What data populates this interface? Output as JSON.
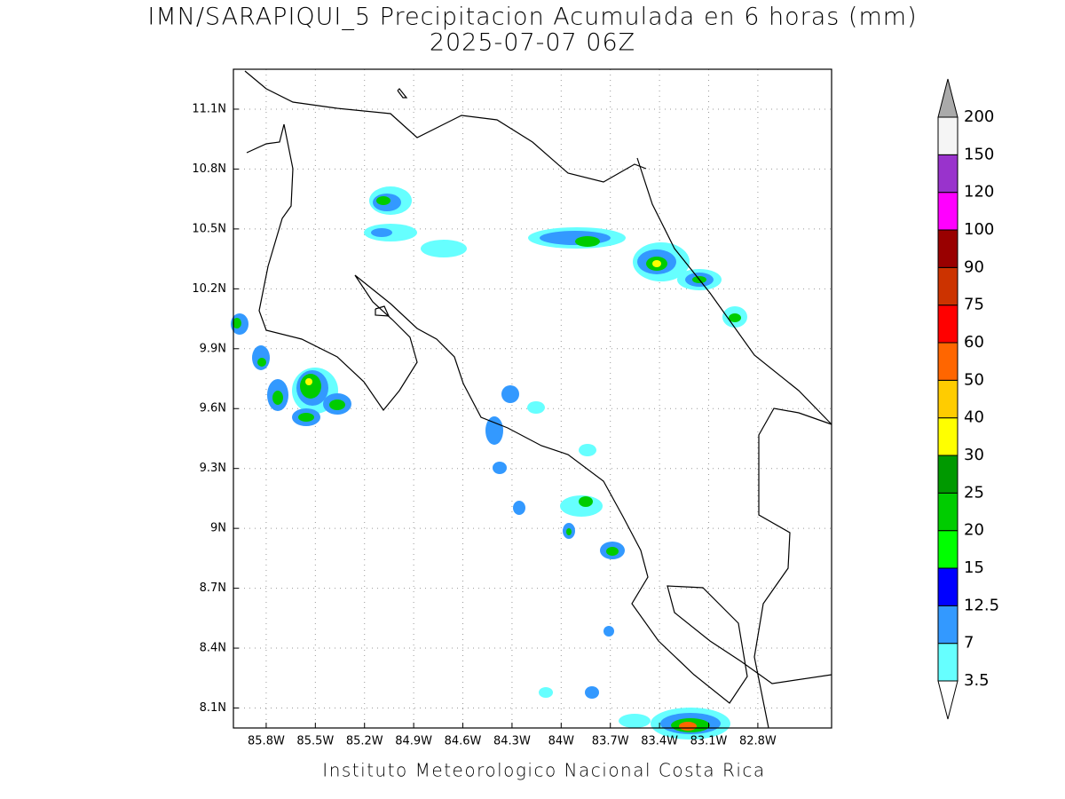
{
  "map": {
    "type": "contour",
    "title": "IMN/SARAPIQUI_5 Precipitacion Acumulada en 6 horas (mm)",
    "subtitle": "2025-07-07 06Z",
    "footer": "Instituto Meteorologico Nacional Costa Rica",
    "xlim": [
      -86.0,
      -82.35
    ],
    "ylim": [
      8.0,
      11.3
    ],
    "xticks": [
      {
        "value": -85.8,
        "label": "85.8W"
      },
      {
        "value": -85.5,
        "label": "85.5W"
      },
      {
        "value": -85.2,
        "label": "85.2W"
      },
      {
        "value": -84.9,
        "label": "84.9W"
      },
      {
        "value": -84.6,
        "label": "84.6W"
      },
      {
        "value": -84.3,
        "label": "84.3W"
      },
      {
        "value": -84.0,
        "label": "84W"
      },
      {
        "value": -83.7,
        "label": "83.7W"
      },
      {
        "value": -83.4,
        "label": "83.4W"
      },
      {
        "value": -83.1,
        "label": "83.1W"
      },
      {
        "value": -82.8,
        "label": "82.8W"
      }
    ],
    "yticks": [
      {
        "value": 8.1,
        "label": "8.1N"
      },
      {
        "value": 8.4,
        "label": "8.4N"
      },
      {
        "value": 8.7,
        "label": "8.7N"
      },
      {
        "value": 9.0,
        "label": "9N"
      },
      {
        "value": 9.3,
        "label": "9.3N"
      },
      {
        "value": 9.6,
        "label": "9.6N"
      },
      {
        "value": 9.9,
        "label": "9.9N"
      },
      {
        "value": 10.2,
        "label": "10.2N"
      },
      {
        "value": 10.5,
        "label": "10.5N"
      },
      {
        "value": 10.8,
        "label": "10.8N"
      },
      {
        "value": 11.1,
        "label": "11.1N"
      }
    ],
    "grid": true,
    "colorbar": {
      "levels": [
        3.5,
        7,
        12.5,
        15,
        20,
        25,
        30,
        40,
        50,
        60,
        75,
        90,
        100,
        120,
        150,
        200
      ],
      "colors": [
        "#66ffff",
        "#3399ff",
        "#0000ff",
        "#00ff00",
        "#00cc00",
        "#009900",
        "#ffff00",
        "#ffcc00",
        "#ff6600",
        "#ff0000",
        "#cc3300",
        "#990000",
        "#ff00ff",
        "#9933cc",
        "#f5f5f5"
      ],
      "under_color": "#ffffff",
      "over_color": "#aaaaaa"
    }
  }
}
